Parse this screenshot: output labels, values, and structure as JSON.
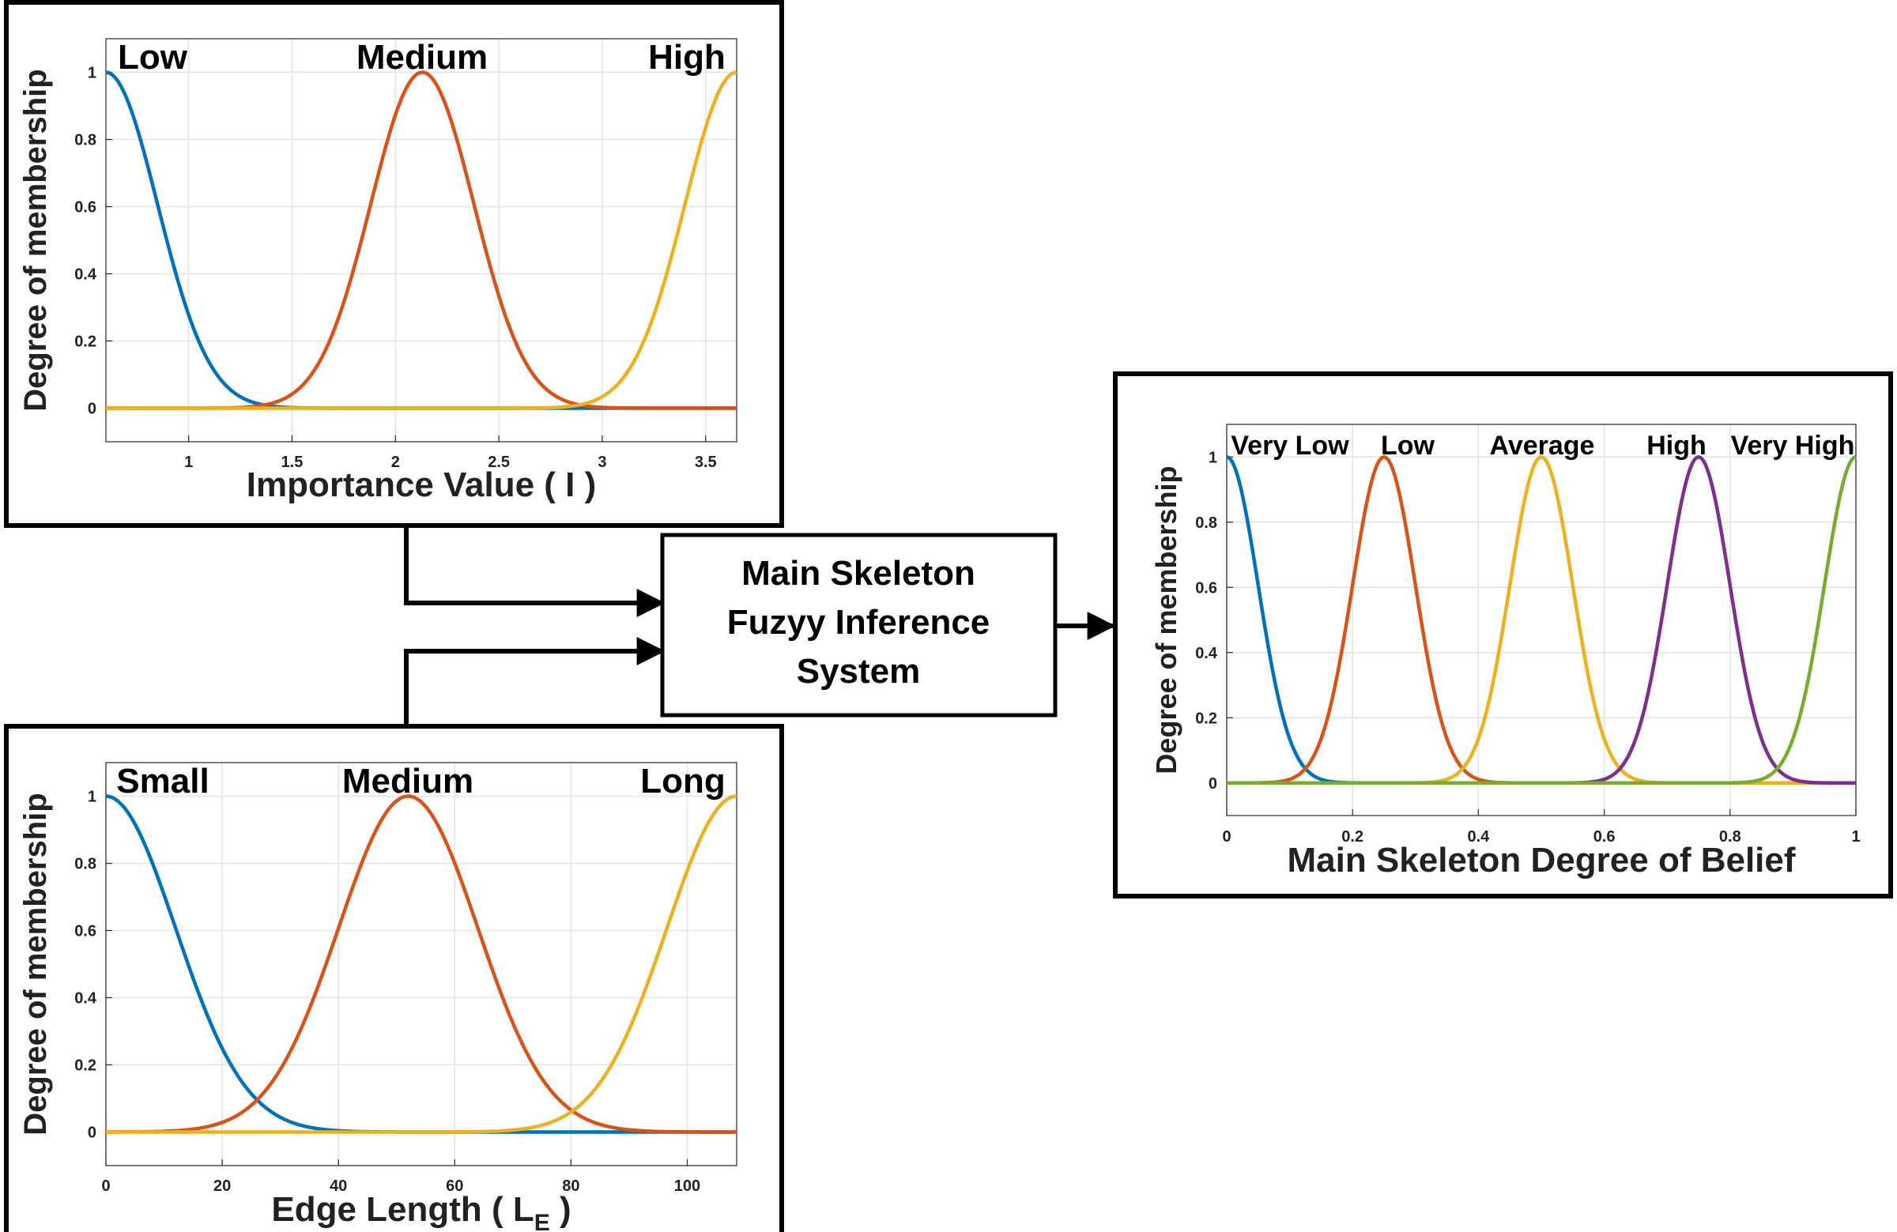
{
  "fis_box": {
    "lines": [
      "Main Skeleton",
      "Fuzyy Inference",
      "System"
    ]
  },
  "chart_data": [
    {
      "id": "importance",
      "type": "line",
      "xlabel": "Importance Value ( I )",
      "ylabel": "Degree of membership",
      "xlim": [
        0.6,
        3.65
      ],
      "ylim": [
        -0.1,
        1.1
      ],
      "xticks": [
        "1",
        "1.5",
        "2",
        "2.5",
        "3",
        "3.5"
      ],
      "xtick_values": [
        1,
        1.5,
        2,
        2.5,
        3,
        3.5
      ],
      "yticks": [
        "0",
        "0.2",
        "0.4",
        "0.6",
        "0.8",
        "1"
      ],
      "ytick_values": [
        0,
        0.2,
        0.4,
        0.6,
        0.8,
        1
      ],
      "grid": true,
      "series": [
        {
          "name": "Low",
          "shape": "gaussian",
          "center": 0.6,
          "sigma": 0.25,
          "color": "#0072BD"
        },
        {
          "name": "Medium",
          "shape": "gaussian",
          "center": 2.13,
          "sigma": 0.25,
          "color": "#D95319"
        },
        {
          "name": "High",
          "shape": "gaussian",
          "center": 3.65,
          "sigma": 0.25,
          "color": "#EDB120"
        }
      ]
    },
    {
      "id": "edge_length",
      "type": "line",
      "xlabel": "Edge Length ( L",
      "xlabel_subscript": "E",
      "xlabel_suffix": " )",
      "ylabel": "Degree of membership",
      "xlim": [
        0,
        108.5
      ],
      "ylim": [
        -0.1,
        1.1
      ],
      "xticks": [
        "0",
        "20",
        "40",
        "60",
        "80",
        "100"
      ],
      "xtick_values": [
        0,
        20,
        40,
        60,
        80,
        100
      ],
      "yticks": [
        "0",
        "0.2",
        "0.4",
        "0.6",
        "0.8",
        "1"
      ],
      "ytick_values": [
        0,
        0.2,
        0.4,
        0.6,
        0.8,
        1
      ],
      "grid": true,
      "series": [
        {
          "name": "Small",
          "shape": "gaussian",
          "center": 0,
          "sigma": 12,
          "color": "#0072BD"
        },
        {
          "name": "Medium",
          "shape": "gaussian",
          "center": 52,
          "sigma": 12,
          "color": "#D95319"
        },
        {
          "name": "Long",
          "shape": "gaussian",
          "center": 108.5,
          "sigma": 12,
          "color": "#EDB120"
        }
      ]
    },
    {
      "id": "degree_of_belief",
      "type": "line",
      "xlabel": "Main Skeleton Degree of Belief",
      "ylabel": "Degree of membership",
      "xlim": [
        0,
        1
      ],
      "ylim": [
        -0.1,
        1.1
      ],
      "xticks": [
        "0",
        "0.2",
        "0.4",
        "0.6",
        "0.8",
        "1"
      ],
      "xtick_values": [
        0,
        0.2,
        0.4,
        0.6,
        0.8,
        1
      ],
      "yticks": [
        "0",
        "0.2",
        "0.4",
        "0.6",
        "0.8",
        "1"
      ],
      "ytick_values": [
        0,
        0.2,
        0.4,
        0.6,
        0.8,
        1
      ],
      "grid": true,
      "series": [
        {
          "name": "Very Low",
          "shape": "gaussian",
          "center": 0,
          "sigma": 0.05,
          "color": "#0072BD"
        },
        {
          "name": "Low",
          "shape": "gaussian",
          "center": 0.25,
          "sigma": 0.05,
          "color": "#D95319"
        },
        {
          "name": "Average",
          "shape": "gaussian",
          "center": 0.5,
          "sigma": 0.05,
          "color": "#EDB120"
        },
        {
          "name": "High",
          "shape": "gaussian",
          "center": 0.75,
          "sigma": 0.05,
          "color": "#7E2F8E"
        },
        {
          "name": "Very High",
          "shape": "gaussian",
          "center": 1,
          "sigma": 0.05,
          "color": "#77AC30"
        }
      ]
    }
  ]
}
